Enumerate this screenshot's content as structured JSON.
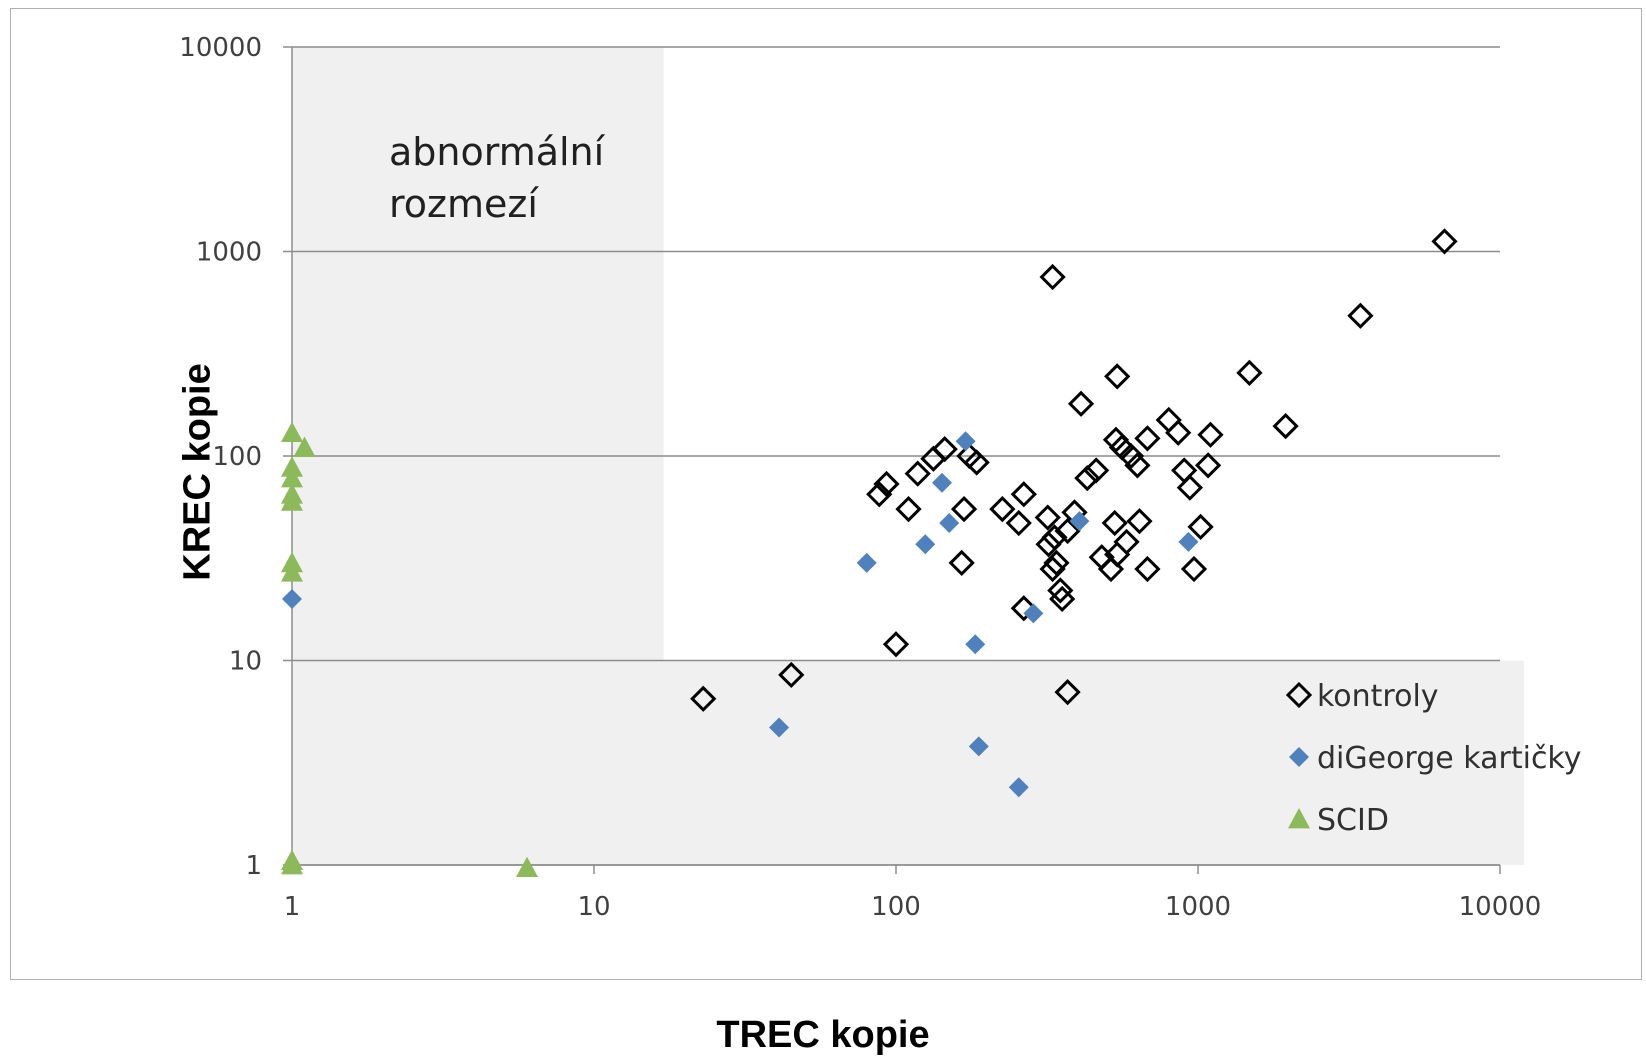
{
  "chart_data": {
    "type": "scatter",
    "title": "",
    "xlabel": "TREC kopie",
    "ylabel": "KREC kopie",
    "x_scale": "log",
    "y_scale": "log",
    "xlim": [
      1,
      10000
    ],
    "ylim": [
      1,
      10000
    ],
    "x_ticks": [
      "1",
      "10",
      "100",
      "1000",
      "10000"
    ],
    "y_ticks": [
      "1",
      "10",
      "100",
      "1000",
      "10000"
    ],
    "grid": "horizontal",
    "legend_position": "bottom-right",
    "annotation": "abnormální rozmezí",
    "annotation_lines": [
      "abnormální",
      "rozmezí"
    ],
    "abnormal_region": {
      "x_max": 17,
      "y_max": 10
    },
    "colors": {
      "kontroly": "#000000",
      "diGeorge": "#4f81bd",
      "scid": "#8cba5a",
      "shading": "#f0f0f0",
      "grid": "#8c8c8c"
    },
    "series": [
      {
        "name": "kontroly",
        "marker": "diamond-open",
        "points": [
          [
            23,
            6.5
          ],
          [
            45,
            8.5
          ],
          [
            100,
            12
          ],
          [
            370,
            7
          ],
          [
            88,
            65
          ],
          [
            93,
            73
          ],
          [
            110,
            55
          ],
          [
            118,
            82
          ],
          [
            133,
            97
          ],
          [
            145,
            108
          ],
          [
            165,
            30
          ],
          [
            168,
            55
          ],
          [
            175,
            100
          ],
          [
            185,
            93
          ],
          [
            225,
            55
          ],
          [
            255,
            47
          ],
          [
            265,
            65
          ],
          [
            265,
            18
          ],
          [
            318,
            50
          ],
          [
            320,
            37
          ],
          [
            330,
            28
          ],
          [
            335,
            40
          ],
          [
            340,
            30
          ],
          [
            350,
            22
          ],
          [
            355,
            20
          ],
          [
            370,
            43
          ],
          [
            390,
            53
          ],
          [
            330,
            750
          ],
          [
            410,
            180
          ],
          [
            430,
            78
          ],
          [
            460,
            85
          ],
          [
            480,
            32
          ],
          [
            515,
            28
          ],
          [
            530,
            47
          ],
          [
            535,
            120
          ],
          [
            540,
            33
          ],
          [
            560,
            110
          ],
          [
            580,
            38
          ],
          [
            600,
            100
          ],
          [
            630,
            90
          ],
          [
            640,
            48
          ],
          [
            680,
            28
          ],
          [
            680,
            122
          ],
          [
            800,
            150
          ],
          [
            860,
            130
          ],
          [
            900,
            85
          ],
          [
            940,
            70
          ],
          [
            970,
            28
          ],
          [
            1020,
            45
          ],
          [
            1080,
            90
          ],
          [
            1100,
            127
          ],
          [
            1480,
            255
          ],
          [
            1950,
            140
          ],
          [
            3450,
            485
          ],
          [
            6550,
            1120
          ],
          [
            540,
            245
          ]
        ]
      },
      {
        "name": "diGeorge kartičky",
        "marker": "diamond-filled",
        "points": [
          [
            1,
            20
          ],
          [
            41,
            4.7
          ],
          [
            80,
            30
          ],
          [
            125,
            37
          ],
          [
            142,
            74
          ],
          [
            150,
            47
          ],
          [
            170,
            118
          ],
          [
            183,
            12
          ],
          [
            188,
            3.8
          ],
          [
            255,
            2.4
          ],
          [
            285,
            17
          ],
          [
            405,
            48
          ],
          [
            930,
            38
          ]
        ]
      },
      {
        "name": "SCID",
        "marker": "triangle",
        "points": [
          [
            1,
            1
          ],
          [
            1,
            1.05
          ],
          [
            1,
            27
          ],
          [
            1,
            30
          ],
          [
            1,
            60
          ],
          [
            1,
            65
          ],
          [
            1,
            78
          ],
          [
            1,
            88
          ],
          [
            1,
            130
          ],
          [
            1.1,
            110
          ],
          [
            6,
            0.97
          ]
        ]
      }
    ]
  }
}
